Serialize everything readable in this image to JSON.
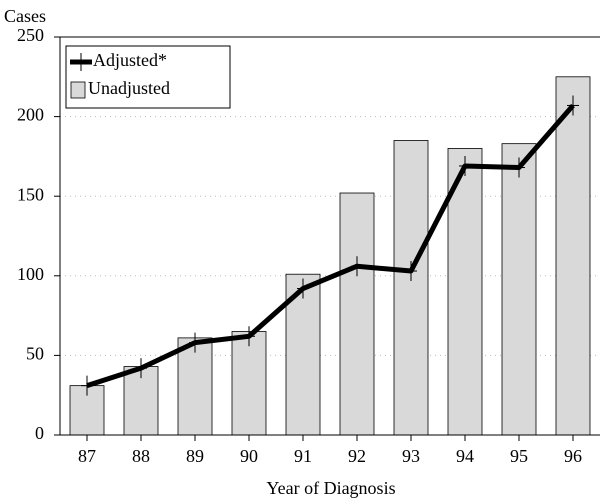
{
  "chart_data": {
    "type": "bar",
    "y_label": "Cases",
    "x_label": "Year of Diagnosis",
    "categories": [
      "87",
      "88",
      "89",
      "90",
      "91",
      "92",
      "93",
      "94",
      "95",
      "96"
    ],
    "series": [
      {
        "name": "Adjusted*",
        "type": "line",
        "color": "#000000",
        "values": [
          31,
          42,
          58,
          62,
          92,
          106,
          103,
          169,
          168,
          207
        ]
      },
      {
        "name": "Unadjusted",
        "type": "bar",
        "color": "#d9d9d9",
        "values": [
          31,
          43,
          61,
          65,
          101,
          152,
          185,
          180,
          183,
          225
        ]
      }
    ],
    "ylim": [
      0,
      250
    ],
    "yticks": [
      0,
      50,
      100,
      150,
      200,
      250
    ],
    "grid": true,
    "legend": "upper left"
  }
}
